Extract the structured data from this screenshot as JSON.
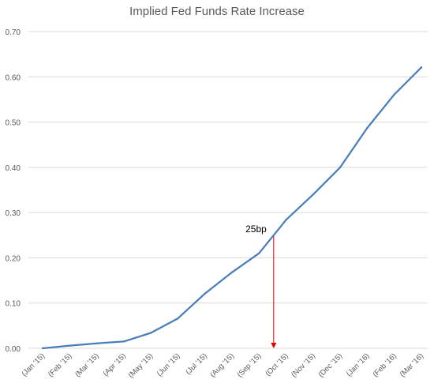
{
  "chart_data": {
    "type": "line",
    "title": "Implied Fed Funds Rate Increase",
    "xlabel": "",
    "ylabel": "",
    "categories": [
      "(Jan '15)",
      "(Feb '15)",
      "(Mar '15)",
      "(Apr '15)",
      "(May '15)",
      "(Jun '15)",
      "(Jul '15)",
      "(Aug '15)",
      "(Sep '15)",
      "(Oct '15)",
      "(Nov '15)",
      "(Dec '15)",
      "(Jan '16)",
      "(Feb '16)",
      "(Mar '16)"
    ],
    "series": [
      {
        "values": [
          0.0,
          0.006,
          0.011,
          0.015,
          0.034,
          0.066,
          0.121,
          0.168,
          0.21,
          0.284,
          0.34,
          0.4,
          0.487,
          0.561,
          0.621
        ]
      }
    ],
    "ylim": [
      0,
      0.7
    ],
    "yticks": [
      "0.00",
      "0.10",
      "0.20",
      "0.30",
      "0.40",
      "0.50",
      "0.60",
      "0.70"
    ],
    "grid": true,
    "legend": "none",
    "annotation": {
      "text": "25bp",
      "value": 0.25,
      "arrow_color": "#e00000"
    },
    "colors": {
      "line": "#4a7ebb",
      "grid": "#d9d9d9",
      "axis_text": "#595959"
    }
  }
}
